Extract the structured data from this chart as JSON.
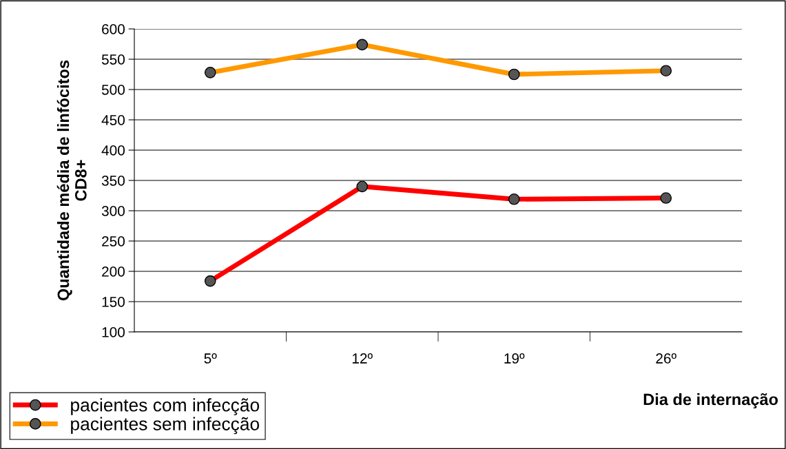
{
  "chart_data": {
    "type": "line",
    "xlabel": "Dia de internação",
    "ylabel": "Quantidade média de linfócitos\nCD8+",
    "categories": [
      "5º",
      "12º",
      "19º",
      "26º"
    ],
    "series": [
      {
        "name": "pacientes com infecção",
        "color": "#ff0000",
        "values": [
          184,
          340,
          319,
          321
        ]
      },
      {
        "name": "pacientes sem infecção",
        "color": "#ff9900",
        "values": [
          528,
          574,
          525,
          531
        ]
      }
    ],
    "ylim": [
      100,
      600
    ],
    "yticks": [
      100,
      150,
      200,
      250,
      300,
      350,
      400,
      450,
      500,
      550,
      600
    ],
    "grid": "y",
    "legend": "bottom left",
    "marker": "circle",
    "line_style": "solid"
  }
}
